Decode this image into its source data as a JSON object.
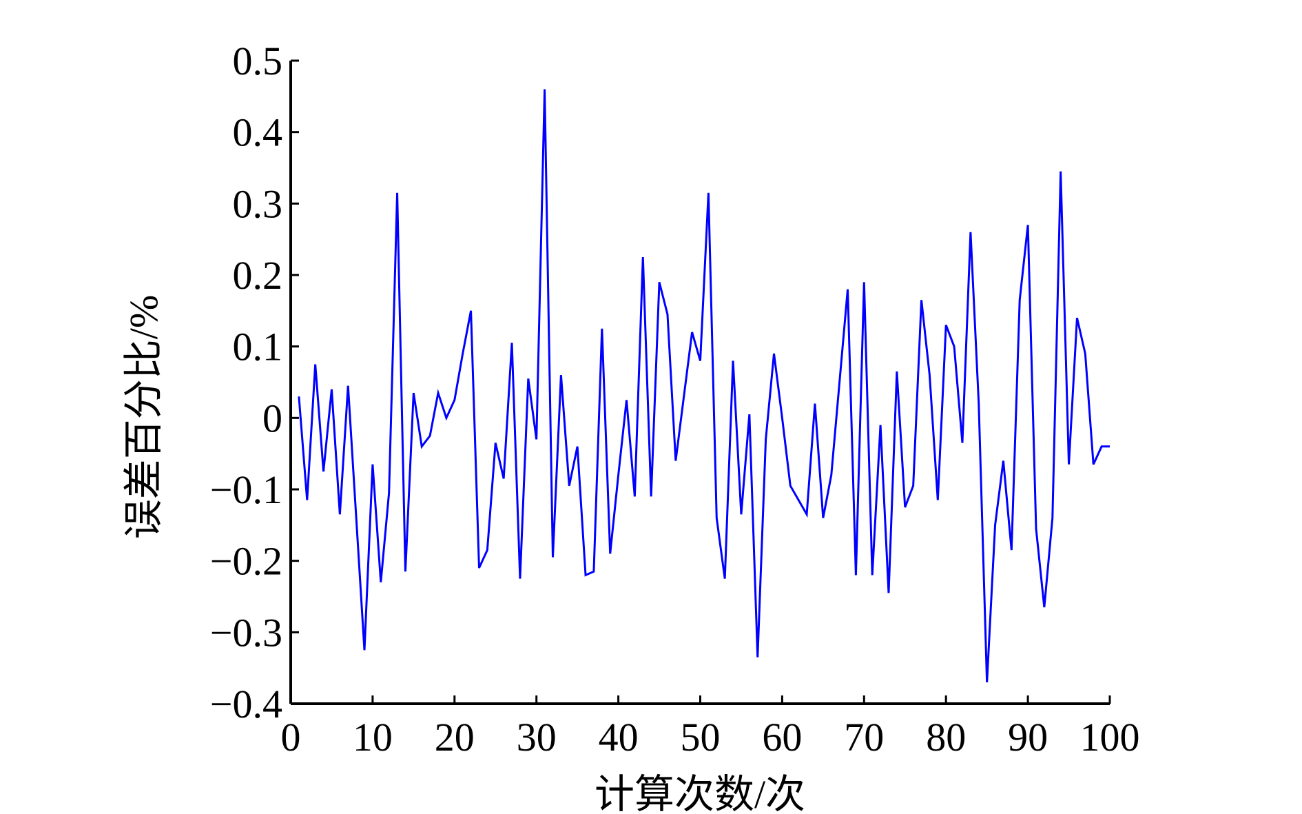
{
  "chart_data": {
    "type": "line",
    "xlabel": "计算次数/次",
    "ylabel": "误差百分比/%",
    "x": [
      1,
      2,
      3,
      4,
      5,
      6,
      7,
      8,
      9,
      10,
      11,
      12,
      13,
      14,
      15,
      16,
      17,
      18,
      19,
      20,
      21,
      22,
      23,
      24,
      25,
      26,
      27,
      28,
      29,
      30,
      31,
      32,
      33,
      34,
      35,
      36,
      37,
      38,
      39,
      40,
      41,
      42,
      43,
      44,
      45,
      46,
      47,
      48,
      49,
      50,
      51,
      52,
      53,
      54,
      55,
      56,
      57,
      58,
      59,
      60,
      61,
      62,
      63,
      64,
      65,
      66,
      67,
      68,
      69,
      70,
      71,
      72,
      73,
      74,
      75,
      76,
      77,
      78,
      79,
      80,
      81,
      82,
      83,
      84,
      85,
      86,
      87,
      88,
      89,
      90,
      91,
      92,
      93,
      94,
      95,
      96,
      97,
      98,
      99,
      100
    ],
    "series": [
      {
        "color": "#0000ff",
        "values": [
          0.03,
          -0.115,
          0.075,
          -0.075,
          0.04,
          -0.135,
          0.045,
          -0.14,
          -0.325,
          -0.065,
          -0.23,
          -0.105,
          0.315,
          -0.215,
          0.035,
          -0.04,
          -0.025,
          0.035,
          0.0,
          0.025,
          0.09,
          0.15,
          -0.21,
          -0.185,
          -0.035,
          -0.085,
          0.105,
          -0.225,
          0.055,
          -0.03,
          0.46,
          -0.195,
          0.06,
          -0.095,
          -0.04,
          -0.22,
          -0.215,
          0.125,
          -0.19,
          -0.08,
          0.025,
          -0.11,
          0.225,
          -0.11,
          0.19,
          0.145,
          -0.06,
          0.03,
          0.12,
          0.08,
          0.315,
          -0.14,
          -0.225,
          0.08,
          -0.135,
          0.005,
          -0.335,
          -0.03,
          0.09,
          0.0,
          -0.095,
          -0.115,
          -0.135,
          0.02,
          -0.14,
          -0.08,
          0.05,
          0.18,
          -0.22,
          0.19,
          -0.22,
          -0.01,
          -0.245,
          0.065,
          -0.125,
          -0.095,
          0.165,
          0.06,
          -0.115,
          0.13,
          0.1,
          -0.035,
          0.26,
          0.02,
          -0.37,
          -0.15,
          -0.06,
          -0.185,
          0.165,
          0.27,
          -0.155,
          -0.265,
          -0.14,
          0.345,
          -0.065,
          0.14,
          0.09,
          -0.065,
          -0.04,
          -0.04
        ]
      }
    ],
    "xlim": [
      0,
      100
    ],
    "xticks": [
      0,
      10,
      20,
      30,
      40,
      50,
      60,
      70,
      80,
      90,
      100
    ],
    "ylim": [
      -0.4,
      0.5
    ],
    "yticks": [
      {
        "value": -0.4,
        "label": "−0.4"
      },
      {
        "value": -0.3,
        "label": "−0.3"
      },
      {
        "value": -0.2,
        "label": "−0.2"
      },
      {
        "value": -0.1,
        "label": "−0.1"
      },
      0,
      0.1,
      0.2,
      0.3,
      0.4,
      0.5
    ]
  }
}
